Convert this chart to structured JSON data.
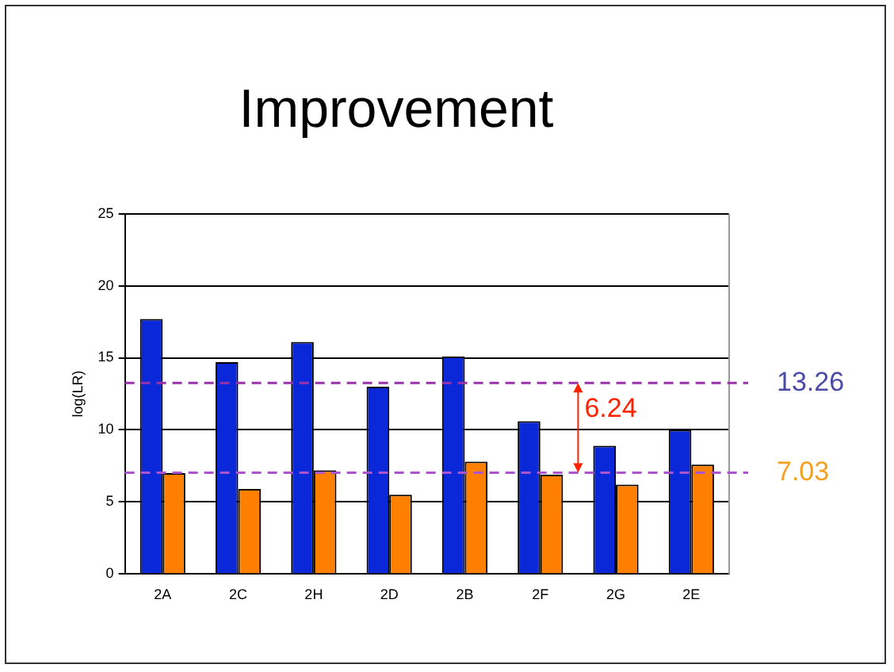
{
  "chart_data": {
    "type": "bar",
    "title": "Improvement",
    "ylabel": "log(LR)",
    "categories": [
      "2A",
      "2C",
      "2H",
      "2D",
      "2B",
      "2F",
      "2G",
      "2E"
    ],
    "series": [
      {
        "color": "#0a28d8",
        "values": [
          17.7,
          14.7,
          16.1,
          13.0,
          15.1,
          10.6,
          8.9,
          10.0
        ]
      },
      {
        "color": "#ff7f00",
        "values": [
          7.0,
          5.9,
          7.2,
          5.5,
          7.8,
          6.9,
          6.2,
          7.6
        ]
      }
    ],
    "ylim": [
      0,
      25
    ],
    "yticks": [
      0,
      5,
      10,
      15,
      20,
      25
    ],
    "grid": "y",
    "ref_lines": [
      {
        "axis": "y",
        "value": 13.26,
        "label": "13.26",
        "color": "#9933aa",
        "line_style": "dashed"
      },
      {
        "axis": "y",
        "value": 7.03,
        "label": "7.03",
        "color": "#aa55cc",
        "line_style": "dashed"
      }
    ],
    "annotations": [
      {
        "text": "6.24",
        "y": 13.26
      }
    ]
  }
}
